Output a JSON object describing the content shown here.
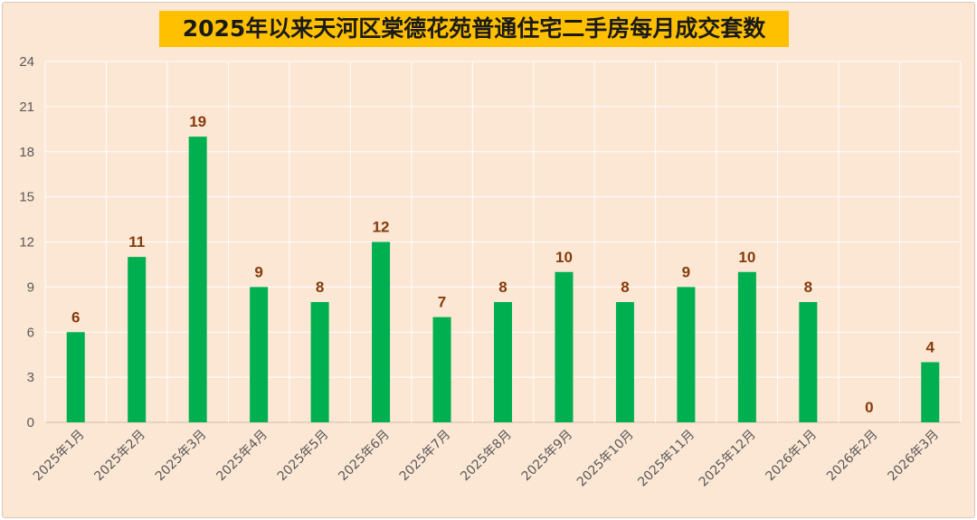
{
  "chart_data": {
    "type": "bar",
    "title": "2025年以来天河区棠德花苑普通住宅二手房每月成交套数",
    "categories": [
      "2025年1月",
      "2025年2月",
      "2025年3月",
      "2025年4月",
      "2025年5月",
      "2025年6月",
      "2025年7月",
      "2025年8月",
      "2025年9月",
      "2025年10月",
      "2025年11月",
      "2025年12月",
      "2026年1月",
      "2026年2月",
      "2026年3月"
    ],
    "values": [
      6,
      11,
      19,
      9,
      8,
      12,
      7,
      8,
      10,
      8,
      9,
      10,
      8,
      0,
      4
    ],
    "ylim": [
      0,
      24
    ],
    "yticks": [
      0,
      3,
      6,
      9,
      12,
      15,
      18,
      21,
      24
    ],
    "grid": true,
    "data_labels": true,
    "colors": {
      "bar": "#00b050",
      "label": "#843c0c",
      "title_bg": "#ffc000",
      "background": "#fce6d4"
    }
  }
}
